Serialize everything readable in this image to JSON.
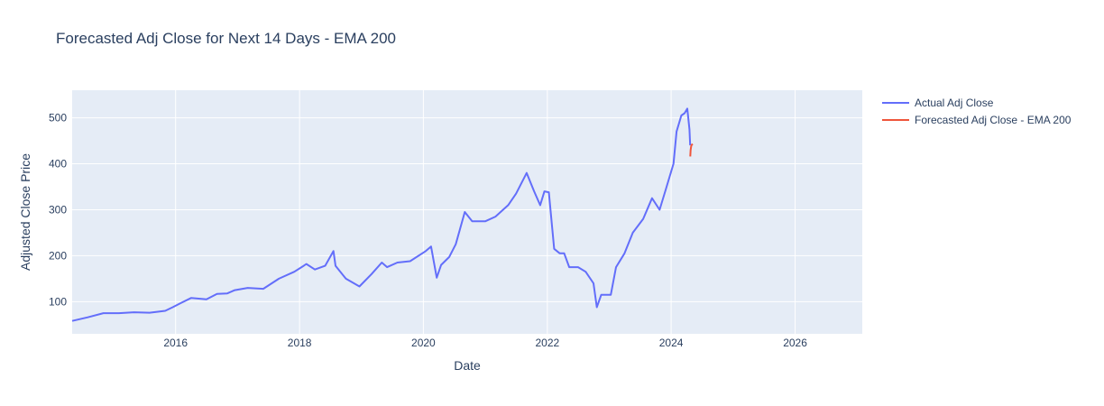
{
  "colors": {
    "plot_bg": "#e5ecf6",
    "grid": "#ffffff",
    "text": "#2a3f5f",
    "actual": "#636efa",
    "forecast": "#ef553b"
  },
  "chart_data": {
    "type": "line",
    "title": "Forecasted Adj Close for Next 14 Days - EMA 200",
    "xlabel": "Date",
    "ylabel": "Adjusted Close Price",
    "xlim": [
      "2014-05-01",
      "2027-02-01"
    ],
    "ylim": [
      30,
      560
    ],
    "x_ticks": [
      "2016",
      "2018",
      "2020",
      "2022",
      "2024",
      "2026"
    ],
    "y_ticks": [
      100,
      200,
      300,
      400,
      500
    ],
    "grid": true,
    "legend_position": "right",
    "series": [
      {
        "name": "Actual Adj Close",
        "color": "#636efa",
        "x": [
          "2014-05-01",
          "2014-08-01",
          "2014-11-01",
          "2015-02-01",
          "2015-05-01",
          "2015-08-01",
          "2015-11-01",
          "2015-12-15",
          "2016-02-01",
          "2016-04-01",
          "2016-07-01",
          "2016-09-01",
          "2016-11-01",
          "2016-12-15",
          "2017-03-01",
          "2017-06-01",
          "2017-09-01",
          "2017-12-01",
          "2018-01-25",
          "2018-02-10",
          "2018-04-01",
          "2018-06-01",
          "2018-07-20",
          "2018-08-01",
          "2018-10-01",
          "2018-12-20",
          "2019-03-01",
          "2019-05-01",
          "2019-06-01",
          "2019-08-01",
          "2019-10-15",
          "2020-01-15",
          "2020-02-15",
          "2020-03-20",
          "2020-04-15",
          "2020-06-01",
          "2020-07-10",
          "2020-09-01",
          "2020-10-15",
          "2021-01-01",
          "2021-03-01",
          "2021-05-15",
          "2021-07-01",
          "2021-09-01",
          "2021-10-15",
          "2021-11-20",
          "2021-12-15",
          "2022-01-10",
          "2022-02-10",
          "2022-03-15",
          "2022-04-10",
          "2022-05-10",
          "2022-07-01",
          "2022-08-15",
          "2022-09-30",
          "2022-10-20",
          "2022-11-15",
          "2023-01-10",
          "2023-02-10",
          "2023-04-01",
          "2023-05-20",
          "2023-07-20",
          "2023-09-10",
          "2023-10-25",
          "2023-12-01",
          "2024-01-15",
          "2024-02-02",
          "2024-03-01",
          "2024-03-20",
          "2024-04-05",
          "2024-04-18",
          "2024-04-22"
        ],
        "values": [
          58,
          66,
          75,
          75,
          77,
          76,
          80,
          88,
          97,
          108,
          105,
          117,
          118,
          125,
          130,
          128,
          150,
          165,
          178,
          182,
          170,
          178,
          210,
          178,
          150,
          133,
          160,
          185,
          175,
          185,
          188,
          210,
          220,
          152,
          180,
          197,
          225,
          295,
          275,
          275,
          285,
          310,
          335,
          380,
          340,
          310,
          340,
          338,
          215,
          205,
          205,
          175,
          175,
          165,
          140,
          88,
          115,
          115,
          175,
          205,
          250,
          280,
          325,
          300,
          345,
          400,
          470,
          505,
          510,
          520,
          475,
          440
        ]
      },
      {
        "name": "Forecasted Adj Close - EMA 200",
        "color": "#ef553b",
        "x": [
          "2024-04-23",
          "2024-04-25",
          "2024-04-28",
          "2024-05-01",
          "2024-05-04",
          "2024-05-07"
        ],
        "values": [
          416,
          430,
          438,
          441,
          442,
          443
        ]
      }
    ]
  }
}
